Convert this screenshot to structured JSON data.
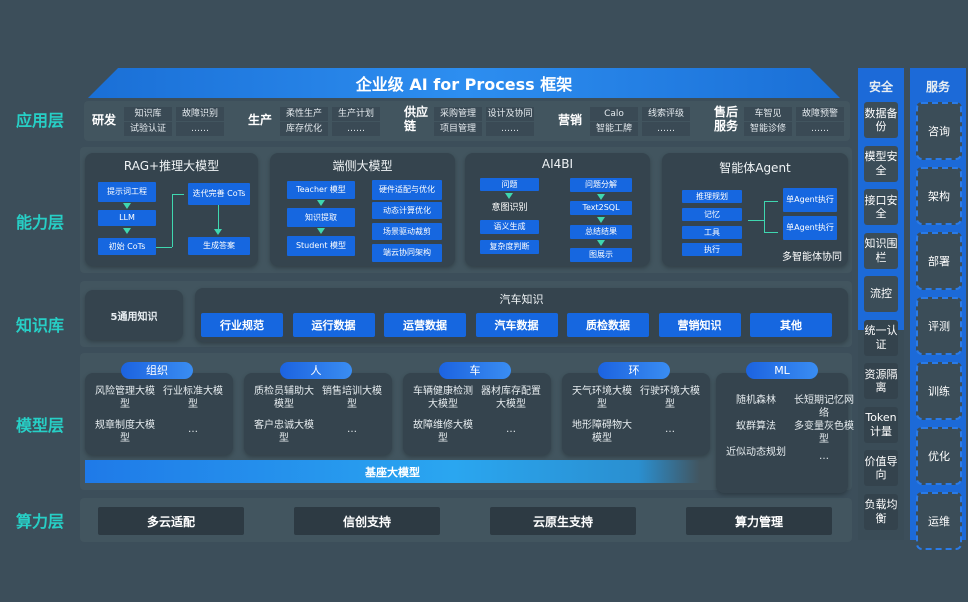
{
  "title": "企业级 AI for Process 框架",
  "layers": [
    "应用层",
    "能力层",
    "知识库",
    "模型层",
    "算力层"
  ],
  "app_groups": [
    {
      "name": "研发",
      "items": [
        "知识库",
        "故障识别",
        "试验认证",
        "……"
      ]
    },
    {
      "name": "生产",
      "items": [
        "柔性生产",
        "生产计划",
        "库存优化",
        "……"
      ]
    },
    {
      "name": "供应链",
      "items": [
        "采购管理",
        "设计及协同",
        "项目管理",
        "……"
      ]
    },
    {
      "name": "营销",
      "items": [
        "Calo",
        "线索评级",
        "智能工牌",
        "……"
      ]
    },
    {
      "name": "售后服务",
      "items": [
        "车智见",
        "故障预警",
        "智能诊修",
        "……"
      ]
    }
  ],
  "capability": {
    "rag": {
      "title": "RAG+推理大模型",
      "boxes": [
        "提示词工程",
        "LLM",
        "初始 CoTs",
        "迭代完善 CoTs",
        "生成答案"
      ]
    },
    "edge": {
      "title": "端侧大模型",
      "boxes": [
        "Teacher 模型",
        "知识提取",
        "Student 模型",
        "硬件适配与优化",
        "动态计算优化",
        "场景驱动裁剪",
        "端云协同架构"
      ]
    },
    "ai4bi": {
      "title": "AI4BI",
      "boxes": [
        "问题",
        "意图识别",
        "语义生成",
        "复杂度判断",
        "问题分解",
        "Text2SQL",
        "总结结果",
        "图展示"
      ]
    },
    "agent": {
      "title": "智能体Agent",
      "boxes": [
        "推理规划",
        "记忆",
        "工具",
        "执行",
        "单Agent执行",
        "单Agent执行"
      ],
      "caption": "多智能体协同"
    }
  },
  "knowledge": {
    "general": "5通用知识",
    "auto_title": "汽车知识",
    "items": [
      "行业规范",
      "运行数据",
      "运营数据",
      "汽车数据",
      "质检数据",
      "营销知识",
      "其他"
    ]
  },
  "models": {
    "groups": [
      {
        "name": "组织",
        "items": [
          "风险管理大模型",
          "行业标准大模型",
          "规章制度大模型",
          "…"
        ]
      },
      {
        "name": "人",
        "items": [
          "质检员辅助大模型",
          "销售培训大模型",
          "客户忠诚大模型",
          "…"
        ]
      },
      {
        "name": "车",
        "items": [
          "车辆健康检测大模型",
          "器材库存配置大模型",
          "故障维修大模型",
          "…"
        ]
      },
      {
        "name": "环",
        "items": [
          "天气环境大模型",
          "行驶环境大模型",
          "地形障碍物大模型",
          "…"
        ]
      },
      {
        "name": "ML",
        "items": [
          "随机森林",
          "长短期记忆网络",
          "蚁群算法",
          "多变量灰色模型",
          "近似动态规划",
          "…"
        ]
      }
    ],
    "base": "基座大模型"
  },
  "compute": [
    "多云适配",
    "信创支持",
    "云原生支持",
    "算力管理"
  ],
  "security": {
    "title": "安全",
    "items": [
      "数据备份",
      "模型安全",
      "接口安全",
      "知识围栏",
      "流控",
      "统一认证",
      "资源隔离",
      "Token计量",
      "价值导向",
      "负载均衡"
    ]
  },
  "services": {
    "title": "服务",
    "items": [
      "咨询",
      "架构",
      "部署",
      "评测",
      "训练",
      "优化",
      "运维"
    ]
  },
  "colors": {
    "background": "#3c4e5a",
    "accent_blue": "#1667e0",
    "layer_label": "#27cfc6",
    "arrow": "#3fd7b0"
  }
}
